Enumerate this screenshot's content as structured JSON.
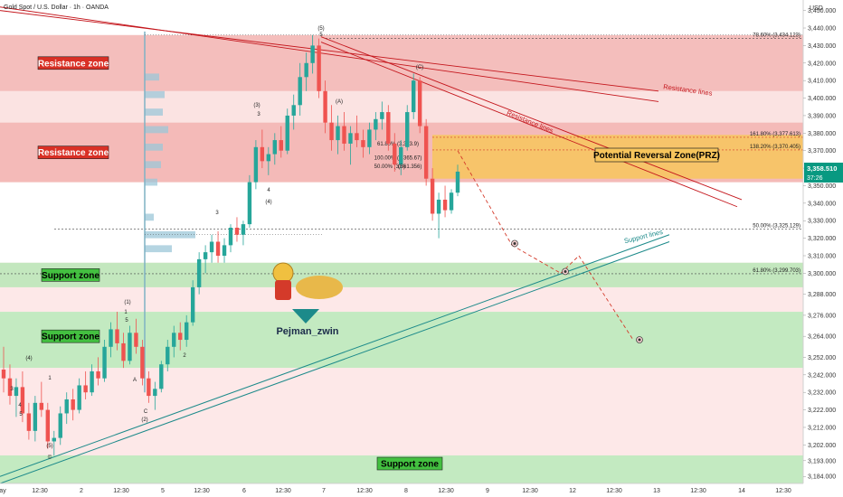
{
  "header": {
    "symbol_title": "Gold Spot / U.S. Dollar · 1h · OANDA",
    "currency": "USD"
  },
  "colors": {
    "up": "#26a69a",
    "down": "#ef5350",
    "resistance_fill": "#f2b3b0",
    "support_fill": "#b9e6b6",
    "prz_fill": "#f7c55c",
    "resistance_line": "#c4161c",
    "support_line": "#1c8a8a"
  },
  "chart_data": {
    "type": "candlestick",
    "ylim": [
      3180,
      3456
    ],
    "y_ticks": [
      3184,
      3193,
      3202,
      3212,
      3222,
      3232,
      3242,
      3252,
      3264,
      3276,
      3288,
      3300,
      3310,
      3320,
      3330,
      3340,
      3350,
      3360,
      3370,
      3380,
      3390,
      3400,
      3410,
      3420,
      3430,
      3440,
      3450
    ],
    "y_tick_labels": [
      "3,184.000",
      "3,193.000",
      "3,202.000",
      "3,212.000",
      "3,222.000",
      "3,232.000",
      "3,242.000",
      "3,252.000",
      "3,264.000",
      "3,276.000",
      "3,288.000",
      "3,300.000",
      "3,310.000",
      "3,320.000",
      "3,330.000",
      "3,340.000",
      "3,350.000",
      "3,360.000",
      "3,370.000",
      "3,380.000",
      "3,390.000",
      "3,400.000",
      "3,410.000",
      "3,420.000",
      "3,430.000",
      "3,440.000",
      "3,450.000"
    ],
    "x_ticks": [
      "ay",
      "12:30",
      "2",
      "12:30",
      "5",
      "12:30",
      "6",
      "12:30",
      "7",
      "12:30",
      "8",
      "12:30",
      "9",
      "12:30",
      "12",
      "12:30",
      "13",
      "12:30",
      "14",
      "12:30"
    ],
    "current_price": "3,358.510",
    "countdown": "37:26",
    "zones": [
      {
        "label": "Resistance zone",
        "kind": "resistance",
        "from": 3404,
        "to": 3436
      },
      {
        "label": "Resistance zone",
        "kind": "resistance",
        "from": 3352,
        "to": 3386
      },
      {
        "label": "Support zone",
        "kind": "support",
        "from": 3292,
        "to": 3306
      },
      {
        "label": "Support zone",
        "kind": "support",
        "from": 3246,
        "to": 3278
      },
      {
        "label": "Support zone",
        "kind": "support",
        "from": 3180,
        "to": 3196
      }
    ],
    "prz": {
      "label": "Potential Reversal Zone(PRZ)",
      "from": 3354,
      "to": 3379
    },
    "fib_levels": [
      {
        "text": "78.60% (3,434.123)",
        "value": 3434.1
      },
      {
        "text": "161.80% (3,377.613)",
        "value": 3377.6
      },
      {
        "text": "138.20% (3,370.405)",
        "value": 3370.4
      },
      {
        "text": "50.00% (3,325.129)",
        "value": 3325.1
      },
      {
        "text": "61.80% (3,299.703)",
        "value": 3299.7
      }
    ],
    "inner_fib_labels": [
      "61.80% (3,373.9)",
      "100.00% (3,365.67)",
      "50.00% (3,361.356)"
    ],
    "trend_line_labels": [
      "Resistance lines",
      "Resistance lines",
      "Support lines"
    ],
    "wave_labels": [
      "(5)",
      "5",
      "(C)",
      "(A)",
      "(B)",
      "(3)",
      "3",
      "4",
      "(4)",
      "3",
      "(1)",
      "1",
      "5",
      "A",
      "C",
      "(2)",
      "2",
      "(4)",
      "3",
      "4",
      "5",
      "1",
      "(5)",
      "©"
    ],
    "author": "Pejman_zwin",
    "candles": [
      [
        3245,
        3258,
        3232,
        3240
      ],
      [
        3240,
        3248,
        3225,
        3230
      ],
      [
        3230,
        3240,
        3218,
        3235
      ],
      [
        3235,
        3244,
        3215,
        3220
      ],
      [
        3220,
        3226,
        3205,
        3210
      ],
      [
        3210,
        3230,
        3204,
        3226
      ],
      [
        3226,
        3238,
        3218,
        3222
      ],
      [
        3222,
        3226,
        3200,
        3204
      ],
      [
        3204,
        3210,
        3196,
        3206
      ],
      [
        3206,
        3224,
        3202,
        3220
      ],
      [
        3220,
        3232,
        3214,
        3228
      ],
      [
        3228,
        3234,
        3216,
        3222
      ],
      [
        3222,
        3240,
        3220,
        3236
      ],
      [
        3236,
        3244,
        3228,
        3232
      ],
      [
        3232,
        3248,
        3230,
        3244
      ],
      [
        3244,
        3252,
        3236,
        3240
      ],
      [
        3240,
        3262,
        3238,
        3258
      ],
      [
        3258,
        3272,
        3252,
        3268
      ],
      [
        3268,
        3278,
        3256,
        3260
      ],
      [
        3260,
        3266,
        3246,
        3250
      ],
      [
        3250,
        3270,
        3248,
        3266
      ],
      [
        3266,
        3274,
        3254,
        3258
      ],
      [
        3258,
        3262,
        3236,
        3240
      ],
      [
        3240,
        3244,
        3226,
        3230
      ],
      [
        3230,
        3238,
        3222,
        3234
      ],
      [
        3234,
        3250,
        3232,
        3248
      ],
      [
        3248,
        3262,
        3244,
        3258
      ],
      [
        3258,
        3270,
        3252,
        3266
      ],
      [
        3266,
        3272,
        3256,
        3262
      ],
      [
        3262,
        3276,
        3258,
        3272
      ],
      [
        3272,
        3296,
        3270,
        3292
      ],
      [
        3292,
        3312,
        3288,
        3308
      ],
      [
        3308,
        3316,
        3300,
        3312
      ],
      [
        3312,
        3322,
        3306,
        3318
      ],
      [
        3318,
        3324,
        3306,
        3310
      ],
      [
        3310,
        3320,
        3306,
        3316
      ],
      [
        3316,
        3328,
        3312,
        3326
      ],
      [
        3326,
        3332,
        3318,
        3322
      ],
      [
        3322,
        3330,
        3316,
        3328
      ],
      [
        3328,
        3356,
        3326,
        3352
      ],
      [
        3352,
        3376,
        3348,
        3372
      ],
      [
        3372,
        3382,
        3360,
        3364
      ],
      [
        3364,
        3372,
        3356,
        3368
      ],
      [
        3368,
        3380,
        3362,
        3376
      ],
      [
        3376,
        3384,
        3366,
        3370
      ],
      [
        3370,
        3394,
        3368,
        3390
      ],
      [
        3390,
        3402,
        3382,
        3396
      ],
      [
        3396,
        3420,
        3390,
        3412
      ],
      [
        3412,
        3426,
        3404,
        3420
      ],
      [
        3420,
        3436,
        3414,
        3430
      ],
      [
        3430,
        3434,
        3400,
        3404
      ],
      [
        3404,
        3410,
        3380,
        3386
      ],
      [
        3386,
        3396,
        3370,
        3376
      ],
      [
        3376,
        3390,
        3368,
        3384
      ],
      [
        3384,
        3392,
        3370,
        3374
      ],
      [
        3374,
        3384,
        3362,
        3380
      ],
      [
        3380,
        3390,
        3372,
        3376
      ],
      [
        3376,
        3382,
        3366,
        3372
      ],
      [
        3372,
        3386,
        3368,
        3382
      ],
      [
        3382,
        3392,
        3376,
        3388
      ],
      [
        3388,
        3398,
        3382,
        3392
      ],
      [
        3392,
        3396,
        3370,
        3374
      ],
      [
        3374,
        3380,
        3358,
        3362
      ],
      [
        3362,
        3376,
        3356,
        3372
      ],
      [
        3372,
        3396,
        3370,
        3392
      ],
      [
        3392,
        3414,
        3388,
        3410
      ],
      [
        3410,
        3412,
        3380,
        3384
      ],
      [
        3384,
        3388,
        3350,
        3354
      ],
      [
        3354,
        3360,
        3330,
        3334
      ],
      [
        3334,
        3346,
        3320,
        3342
      ],
      [
        3342,
        3350,
        3332,
        3336
      ],
      [
        3336,
        3348,
        3334,
        3346
      ],
      [
        3346,
        3362,
        3344,
        3358
      ]
    ]
  }
}
